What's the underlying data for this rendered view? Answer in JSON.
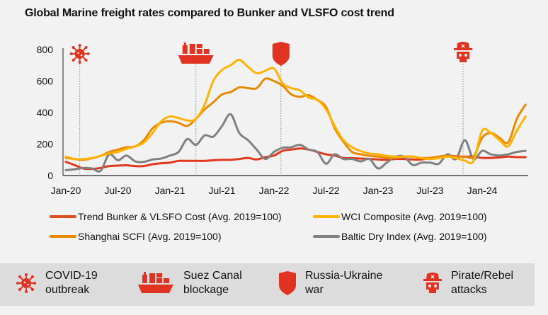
{
  "title": "Global Marine freight rates compared to Bunker and VLSFO cost trend",
  "colors": {
    "bunker": "#e2381c",
    "wci": "#ffb300",
    "scfi": "#e88a00",
    "baltic": "#808080",
    "event": "#e03322"
  },
  "chart_data": {
    "type": "line",
    "title": "Global Marine freight rates compared to Bunker and VLSFO cost trend",
    "xlabel": "",
    "ylabel": "",
    "ylim": [
      0,
      800
    ],
    "yticks": [
      "0",
      "200",
      "400",
      "600",
      "800"
    ],
    "xticks": [
      "Jan-20",
      "Jul-20",
      "Jan-21",
      "Jul-21",
      "Jan-22",
      "Jul-22",
      "Jan-23",
      "Jul-23",
      "Jan-24"
    ],
    "x_start": "Jan-20",
    "x_end": "Jun-24",
    "x_frequency": "monthly",
    "grid": false,
    "legend_position": "bottom",
    "series": [
      {
        "key": "bunker",
        "name": "Trend Bunker & VLSFO Cost (Avg. 2019=100)",
        "values": [
          87,
          67,
          45,
          42,
          48,
          60,
          63,
          65,
          60,
          60,
          72,
          78,
          82,
          93,
          93,
          93,
          93,
          97,
          100,
          100,
          105,
          112,
          102,
          117,
          127,
          157,
          165,
          172,
          165,
          150,
          135,
          127,
          112,
          110,
          108,
          105,
          102,
          100,
          105,
          105,
          102,
          102,
          112,
          120,
          127,
          122,
          120,
          120,
          112,
          112,
          115,
          120,
          117,
          117
        ]
      },
      {
        "key": "wci",
        "name": "WCI Composite (Avg. 2019=100)",
        "values": [
          120,
          105,
          105,
          110,
          125,
          140,
          150,
          170,
          185,
          210,
          270,
          345,
          375,
          365,
          350,
          360,
          450,
          600,
          670,
          700,
          735,
          690,
          650,
          665,
          680,
          585,
          555,
          540,
          495,
          480,
          420,
          315,
          225,
          180,
          155,
          140,
          135,
          125,
          120,
          120,
          120,
          110,
          105,
          110,
          120,
          110,
          95,
          92,
          285,
          270,
          225,
          185,
          285,
          375
        ]
      },
      {
        "key": "scfi",
        "name": "Shanghai SCFI (Avg. 2019=100)",
        "values": [
          112,
          105,
          100,
          110,
          125,
          150,
          165,
          180,
          185,
          225,
          300,
          335,
          345,
          335,
          315,
          360,
          420,
          465,
          515,
          530,
          560,
          555,
          555,
          615,
          600,
          570,
          515,
          500,
          510,
          480,
          435,
          300,
          215,
          150,
          135,
          125,
          120,
          112,
          112,
          120,
          120,
          112,
          112,
          120,
          125,
          120,
          120,
          120,
          240,
          270,
          240,
          210,
          360,
          450
        ]
      },
      {
        "key": "baltic",
        "name": "Baltic Dry Index (Avg. 2019=100)",
        "values": [
          34,
          40,
          48,
          45,
          30,
          135,
          97,
          127,
          90,
          87,
          102,
          108,
          127,
          150,
          232,
          195,
          255,
          247,
          314,
          389,
          270,
          225,
          165,
          105,
          150,
          176,
          180,
          195,
          165,
          150,
          75,
          135,
          105,
          105,
          90,
          105,
          45,
          82,
          120,
          120,
          67,
          82,
          82,
          75,
          135,
          105,
          225,
          105,
          157,
          135,
          127,
          135,
          150,
          157
        ]
      }
    ],
    "events": [
      {
        "label": "COVID-19 outbreak",
        "icon": "virus-icon",
        "month": 1.6
      },
      {
        "label": "Suez Canal blockage",
        "icon": "cargo-ship-icon",
        "month": 15
      },
      {
        "label": "Russia-Ukraine war",
        "icon": "shield-icon",
        "month": 24.8
      },
      {
        "label": "Pirate/Rebel attacks",
        "icon": "pirate-skull-icon",
        "month": 45.8
      }
    ]
  },
  "events_legend": [
    {
      "line1": "COVID-19",
      "line2": "outbreak"
    },
    {
      "line1": "Suez Canal",
      "line2": "blockage"
    },
    {
      "line1": "Russia-Ukraine",
      "line2": "war"
    },
    {
      "line1": "Pirate/Rebel",
      "line2": "attacks"
    }
  ]
}
